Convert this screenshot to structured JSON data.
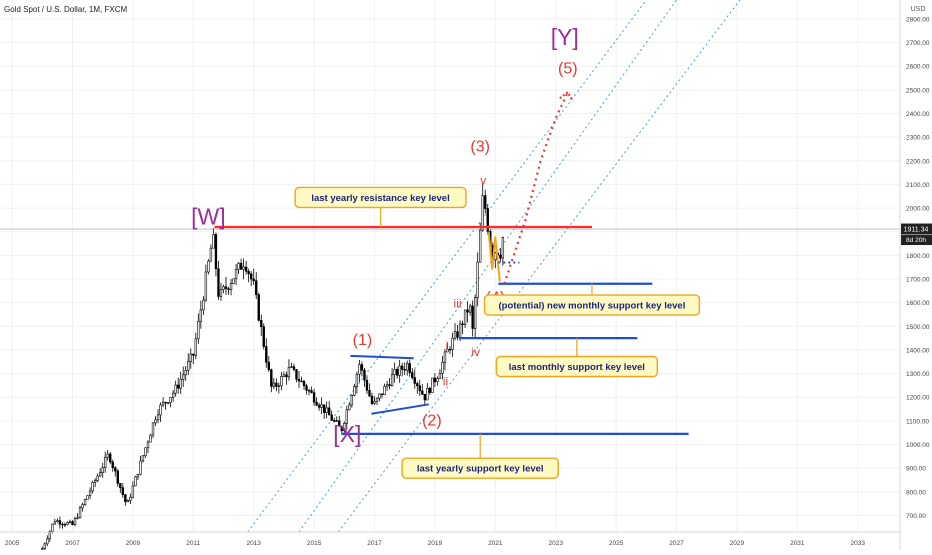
{
  "header": {
    "title": "Gold Spot / U.S. Dollar, 1M, FXCM"
  },
  "axis": {
    "currency_label": "USD"
  },
  "price_tag": {
    "value": "1911.34",
    "countdown": "8d 20h"
  },
  "colors": {
    "up_candle": "#ffffff",
    "down_candle": "#000000",
    "resistance": "#ff2b2b",
    "support": "#1f4fd1",
    "wave_primary": "#9b2f9e",
    "wave_minor": "#e53935",
    "callout_bg": "#fff9c4",
    "callout_border": "#f2a41c",
    "channel": "#4a9ee0",
    "projection": "#e53935",
    "wave4_path": "#f2a41c"
  },
  "chart_data": {
    "type": "candlestick",
    "symbol": "Gold Spot / U.S. Dollar",
    "interval": "1M",
    "source": "FXCM",
    "x_range": [
      2004.6,
      2034.4
    ],
    "x_ticks": [
      "2005",
      "2007",
      "2009",
      "2011",
      "2013",
      "2015",
      "2017",
      "2019",
      "2021",
      "2023",
      "2025",
      "2027",
      "2029",
      "2031",
      "2033"
    ],
    "y_range": [
      630,
      2880
    ],
    "y_ticks": [
      700,
      800,
      900,
      1000,
      1100,
      1200,
      1300,
      1400,
      1500,
      1600,
      1700,
      1800,
      1900,
      2000,
      2100,
      2200,
      2300,
      2400,
      2500,
      2600,
      2700,
      2800
    ],
    "y_tick_labels": [
      "700.00",
      "800.00",
      "900.00",
      "1000.00",
      "1100.00",
      "1200.00",
      "1300.00",
      "1400.00",
      "1500.00",
      "1600.00",
      "1700.00",
      "1800.00",
      "1900.00",
      "2000.00",
      "2100.00",
      "2200.00",
      "2300.00",
      "2400.00",
      "2500.00",
      "2600.00",
      "2700.00",
      "2800.00"
    ],
    "last_price": 1911.34,
    "price_anchors": [
      {
        "t": 2006.0,
        "p": 560
      },
      {
        "t": 2006.4,
        "p": 680
      },
      {
        "t": 2007.0,
        "p": 660
      },
      {
        "t": 2008.2,
        "p": 960
      },
      {
        "t": 2008.8,
        "p": 740
      },
      {
        "t": 2009.8,
        "p": 1140
      },
      {
        "t": 2010.4,
        "p": 1230
      },
      {
        "t": 2011.0,
        "p": 1380
      },
      {
        "t": 2011.65,
        "p": 1880
      },
      {
        "t": 2011.85,
        "p": 1620
      },
      {
        "t": 2012.7,
        "p": 1780
      },
      {
        "t": 2013.0,
        "p": 1670
      },
      {
        "t": 2013.6,
        "p": 1230
      },
      {
        "t": 2014.2,
        "p": 1320
      },
      {
        "t": 2015.0,
        "p": 1200
      },
      {
        "t": 2015.9,
        "p": 1060
      },
      {
        "t": 2016.5,
        "p": 1340
      },
      {
        "t": 2016.95,
        "p": 1160
      },
      {
        "t": 2017.6,
        "p": 1290
      },
      {
        "t": 2018.1,
        "p": 1340
      },
      {
        "t": 2018.65,
        "p": 1200
      },
      {
        "t": 2019.1,
        "p": 1300
      },
      {
        "t": 2019.5,
        "p": 1420
      },
      {
        "t": 2019.75,
        "p": 1470
      },
      {
        "t": 2020.15,
        "p": 1590
      },
      {
        "t": 2020.25,
        "p": 1480
      },
      {
        "t": 2020.6,
        "p": 2060
      },
      {
        "t": 2020.8,
        "p": 1880
      },
      {
        "t": 2020.95,
        "p": 1780
      },
      {
        "t": 2021.05,
        "p": 1860
      },
      {
        "t": 2021.12,
        "p": 1780
      },
      {
        "t": 2021.3,
        "p": 1911
      }
    ],
    "key_levels": [
      {
        "label": "last yearly resistance key level",
        "price": 1920,
        "t_start": 2011.7,
        "t_end": 2024.2,
        "kind": "resistance"
      },
      {
        "label": "(potential) new monthly support key level",
        "price": 1680,
        "t_start": 2021.1,
        "t_end": 2026.2,
        "kind": "support"
      },
      {
        "label": "last monthly support key level",
        "price": 1450,
        "t_start": 2019.8,
        "t_end": 2025.7,
        "kind": "support"
      },
      {
        "label": "last yearly support key level",
        "price": 1045,
        "t_start": 2015.9,
        "t_end": 2027.4,
        "kind": "support"
      }
    ],
    "triangle": {
      "upper": [
        {
          "t": 2016.2,
          "p": 1375
        },
        {
          "t": 2018.3,
          "p": 1365
        }
      ],
      "lower": [
        {
          "t": 2016.9,
          "p": 1130
        },
        {
          "t": 2018.8,
          "p": 1170
        }
      ]
    },
    "wave_labels": [
      {
        "text": "[W]",
        "t": 2011.5,
        "p": 1930,
        "tier": "primary"
      },
      {
        "text": "[X]",
        "t": 2016.1,
        "p": 1010,
        "tier": "primary"
      },
      {
        "text": "[Y]",
        "t": 2023.3,
        "p": 2690,
        "tier": "primary"
      },
      {
        "text": "(1)",
        "t": 2016.6,
        "p": 1420,
        "tier": "intermediate"
      },
      {
        "text": "(2)",
        "t": 2018.9,
        "p": 1080,
        "tier": "intermediate"
      },
      {
        "text": "(3)",
        "t": 2020.5,
        "p": 2240,
        "tier": "intermediate"
      },
      {
        "text": "(4)",
        "t": 2021.0,
        "p": 1600,
        "tier": "intermediate"
      },
      {
        "text": "(5)",
        "t": 2023.4,
        "p": 2570,
        "tier": "intermediate"
      },
      {
        "text": "i",
        "t": 2019.4,
        "p": 1400,
        "tier": "minor"
      },
      {
        "text": "ii",
        "t": 2019.35,
        "p": 1250,
        "tier": "minor"
      },
      {
        "text": "iii",
        "t": 2019.75,
        "p": 1580,
        "tier": "minor"
      },
      {
        "text": "iv",
        "t": 2020.35,
        "p": 1375,
        "tier": "minor"
      },
      {
        "text": "v",
        "t": 2020.6,
        "p": 2100,
        "tier": "minor"
      }
    ],
    "callouts": [
      {
        "text": "last yearly resistance key level",
        "t": 2017.2,
        "p": 2045,
        "level": 0
      },
      {
        "text": "(potential) new monthly support key level",
        "t": 2024.2,
        "p": 1590,
        "level": 1
      },
      {
        "text": "last monthly support key level",
        "t": 2023.7,
        "p": 1330,
        "level": 2
      },
      {
        "text": "last yearly support key level",
        "t": 2020.5,
        "p": 900,
        "level": 3
      }
    ],
    "channel_lines": [
      {
        "from": {
          "t": 2012.8,
          "p": 630
        },
        "to": {
          "t": 2026.0,
          "p": 2880
        }
      },
      {
        "from": {
          "t": 2014.5,
          "p": 630
        },
        "to": {
          "t": 2027.0,
          "p": 2880
        }
      },
      {
        "from": {
          "t": 2015.8,
          "p": 630
        },
        "to": {
          "t": 2029.1,
          "p": 2880
        }
      }
    ],
    "projection": [
      {
        "t": 2021.3,
        "p": 1680
      },
      {
        "t": 2022.0,
        "p": 1950
      },
      {
        "t": 2022.5,
        "p": 2200
      },
      {
        "t": 2023.0,
        "p": 2380
      },
      {
        "t": 2023.4,
        "p": 2490
      }
    ],
    "wave4_path": [
      {
        "t": 2020.78,
        "p": 1900
      },
      {
        "t": 2020.9,
        "p": 1740
      },
      {
        "t": 2021.0,
        "p": 1880
      },
      {
        "t": 2021.15,
        "p": 1690
      }
    ],
    "wave4_dotted": {
      "t_start": 2021.1,
      "t_end": 2021.8,
      "p": 1770
    }
  }
}
